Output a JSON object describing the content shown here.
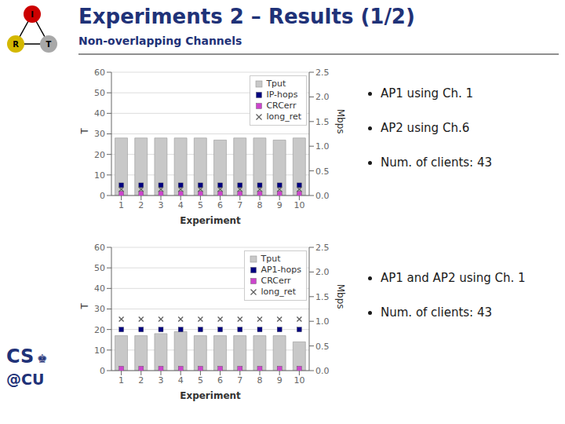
{
  "title": "Experiments 2 – Results (1/2)",
  "subtitle": "Non-overlapping Channels",
  "annotations": [
    "I",
    "R",
    "T",
    "CS",
    "♚",
    "@CU"
  ],
  "chart_data": [
    {
      "type": "bar",
      "categories": [
        "1",
        "2",
        "3",
        "4",
        "5",
        "6",
        "7",
        "8",
        "9",
        "10"
      ],
      "series": [
        {
          "name": "Tput",
          "type": "bar",
          "color": "#c8c8c8",
          "values": [
            28,
            28,
            28,
            28,
            28,
            27,
            28,
            28,
            27,
            28
          ]
        },
        {
          "name": "IP-hops",
          "type": "scatter",
          "marker": "square",
          "color": "#000080",
          "values": [
            5,
            5,
            5,
            5,
            5,
            5,
            5,
            5,
            5,
            5
          ]
        },
        {
          "name": "CRCerr",
          "type": "scatter",
          "marker": "square",
          "color": "#cc44cc",
          "values": [
            1,
            1,
            1,
            1,
            1,
            1,
            1,
            1,
            1,
            1
          ]
        },
        {
          "name": "long_ret",
          "type": "scatter",
          "marker": "x",
          "color": "#606060",
          "values": [
            3,
            3,
            3,
            3,
            3,
            3,
            3,
            3,
            3,
            3
          ]
        }
      ],
      "xlabel": "Experiment",
      "ylabel": "T",
      "y2label": "Mbps",
      "ylim": [
        0,
        60
      ],
      "yticks": [
        0,
        10,
        20,
        30,
        40,
        50,
        60
      ],
      "y2lim": [
        0,
        2.5
      ],
      "y2ticks": [
        {
          "value": 0,
          "label": "0.0"
        },
        0.5,
        {
          "value": 1,
          "label": "1.0"
        },
        1.5,
        {
          "value": 2,
          "label": "2.0"
        },
        2.5
      ],
      "grid": true,
      "legend": "upper right",
      "annotations": [
        "AP1 using Ch. 1",
        "AP2 using Ch.6",
        "Num. of clients: 43"
      ]
    },
    {
      "type": "bar",
      "categories": [
        "1",
        "2",
        "3",
        "4",
        "5",
        "6",
        "7",
        "8",
        "9",
        "10"
      ],
      "series": [
        {
          "name": "Tput",
          "type": "bar",
          "color": "#c8c8c8",
          "values": [
            17,
            17,
            18,
            19,
            17,
            17,
            17,
            17,
            17,
            14
          ]
        },
        {
          "name": "AP1-hops",
          "type": "scatter",
          "marker": "square",
          "color": "#000080",
          "values": [
            20,
            20,
            20,
            20,
            20,
            20,
            20,
            20,
            20,
            20
          ]
        },
        {
          "name": "CRCerr",
          "type": "scatter",
          "marker": "square",
          "color": "#cc44cc",
          "values": [
            1,
            1,
            1,
            1,
            1,
            1,
            1,
            1,
            1,
            1
          ]
        },
        {
          "name": "long_ret",
          "type": "scatter",
          "marker": "x",
          "color": "#606060",
          "values": [
            25,
            25,
            25,
            25,
            25,
            25,
            25,
            25,
            25,
            25
          ]
        }
      ],
      "xlabel": "Experiment",
      "ylabel": "T",
      "y2label": "Mbps",
      "ylim": [
        0,
        60
      ],
      "yticks": [
        0,
        10,
        20,
        30,
        40,
        50,
        60
      ],
      "y2lim": [
        0,
        2.5
      ],
      "y2ticks": [
        {
          "value": 0,
          "label": "0.0"
        },
        0.5,
        {
          "value": 1,
          "label": "1.0"
        },
        1.5,
        {
          "value": 2,
          "label": "2.0"
        },
        2.5
      ],
      "grid": true,
      "legend": "upper right",
      "annotations": [
        "AP1 and AP2 using Ch. 1",
        "Num. of clients: 43"
      ]
    }
  ]
}
